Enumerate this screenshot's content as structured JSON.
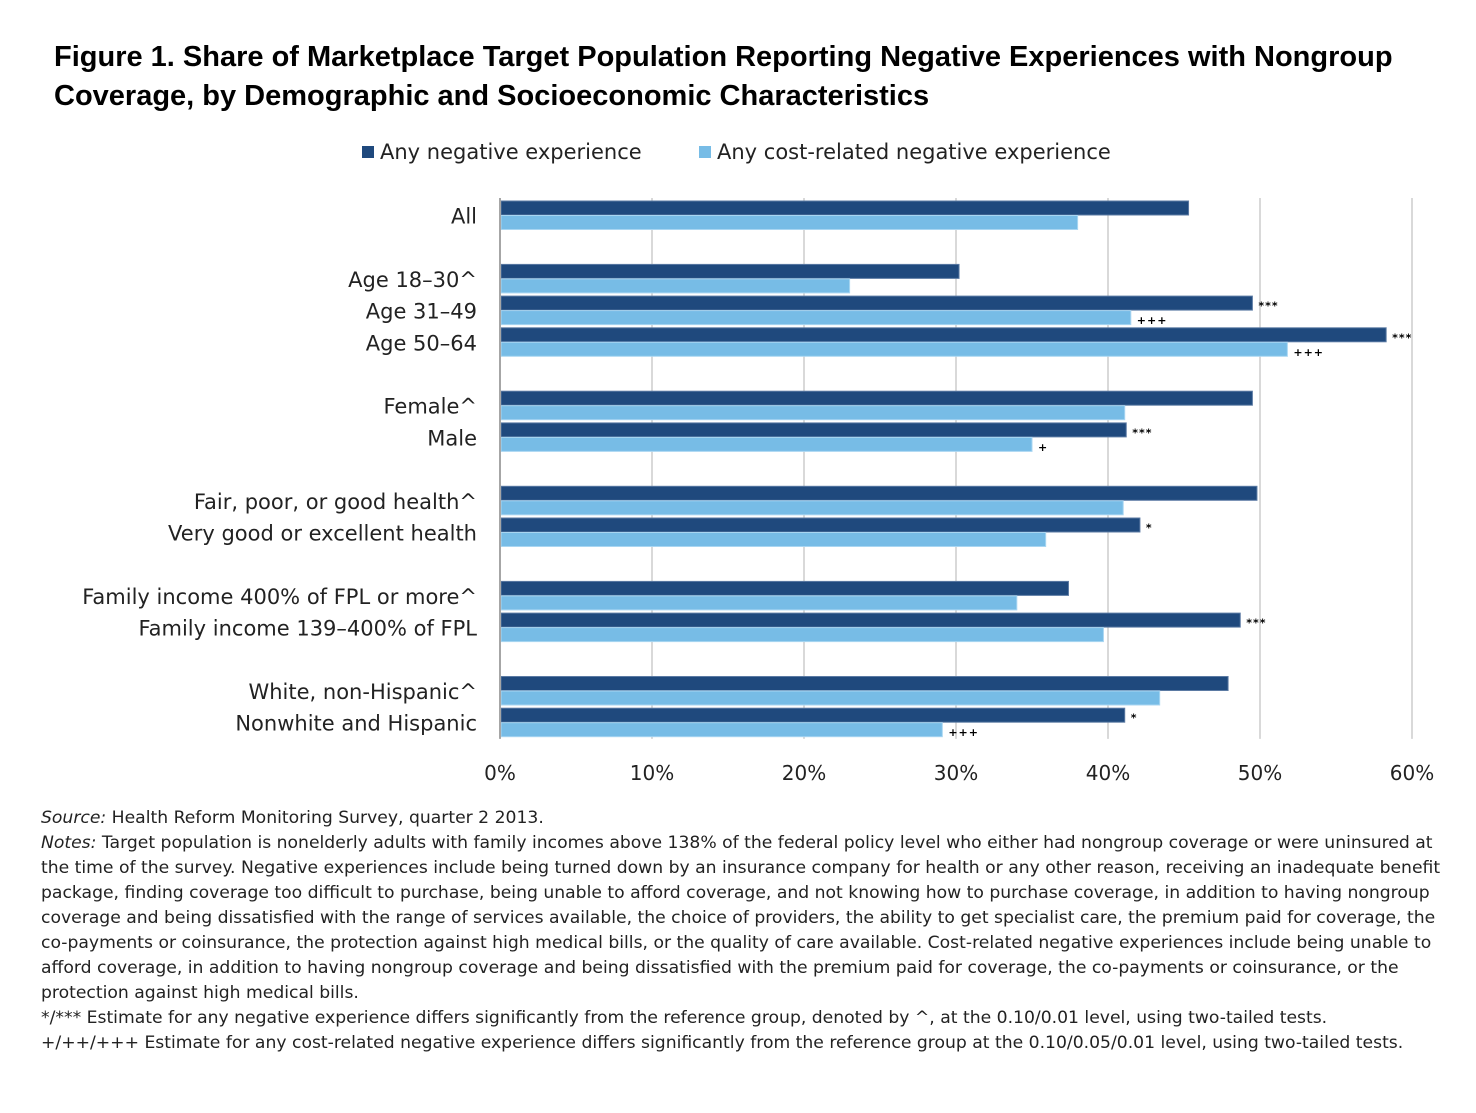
{
  "title": "Figure 1. Share of Marketplace Target Population Reporting Negative Experiences with Nongroup Coverage, by Demographic and Socioeconomic Characteristics",
  "colors": {
    "dark": "#1f497d",
    "light": "#77bce6",
    "grid": "#d9d9d9",
    "axis": "#a6a6a6"
  },
  "chart_data": {
    "type": "bar",
    "orientation": "horizontal",
    "title": "Figure 1. Share of Marketplace Target Population Reporting Negative Experiences with Nongroup Coverage, by Demographic and Socioeconomic Characteristics",
    "xlabel": "",
    "ylabel": "",
    "xlim": [
      0,
      60
    ],
    "xticks": [
      0,
      10,
      20,
      30,
      40,
      50,
      60
    ],
    "xtick_labels": [
      "0%",
      "10%",
      "20%",
      "30%",
      "40%",
      "50%",
      "60%"
    ],
    "grid": "vertical",
    "legend_position": "top-center",
    "categories": [
      "All",
      "",
      "Age 18–30^",
      "Age 31–49",
      "Age 50–64",
      "",
      "Female^",
      "Male",
      "",
      "Fair, poor, or good health^",
      "Very good or excellent health",
      "",
      "Family income 400% of FPL or more^",
      "Family income 139–400% of FPL",
      "",
      "White, non-Hispanic^",
      "Nonwhite  and Hispanic"
    ],
    "series": [
      {
        "name": "Any negative experience",
        "color": "#1f497d",
        "values": [
          45.3,
          null,
          30.2,
          49.5,
          58.3,
          null,
          49.5,
          41.2,
          null,
          49.8,
          42.1,
          null,
          37.4,
          48.7,
          null,
          47.9,
          41.1
        ],
        "significance": [
          "",
          "",
          "",
          "***",
          "***",
          "",
          "",
          "***",
          "",
          "",
          "*",
          "",
          "",
          "***",
          "",
          "",
          "*"
        ]
      },
      {
        "name": "Any cost-related negative experience",
        "color": "#77bce6",
        "values": [
          38.0,
          null,
          23.0,
          41.5,
          51.8,
          null,
          41.1,
          35.0,
          null,
          41.0,
          35.9,
          null,
          34.0,
          39.7,
          null,
          43.4,
          29.1
        ],
        "significance": [
          "",
          "",
          "",
          "+++",
          "+++",
          "",
          "",
          "+",
          "",
          "",
          "",
          "",
          "",
          "",
          "",
          "",
          "+++"
        ]
      }
    ]
  },
  "notes": {
    "source_label": "Source:",
    "source_text": " Health Reform Monitoring Survey, quarter 2 2013.",
    "notes_label": "Notes:",
    "notes_text": " Target population is nonelderly adults with family incomes above 138% of the federal policy level who either had nongroup coverage or were uninsured at the time of the survey. Negative experiences include being turned down by an insurance company for health or any other reason, receiving an inadequate benefit package, finding coverage too difficult to purchase, being unable to afford coverage, and not knowing how to purchase coverage, in addition to having nongroup coverage and being dissatisfied with the range of services available, the choice of providers, the ability to get specialist care, the premium paid for coverage, the co-payments or coinsurance, the protection against high medical bills, or the quality of care available. Cost-related negative experiences include being unable to afford coverage, in addition to having nongroup coverage and being dissatisfied with the premium paid for coverage, the co-payments or coinsurance, or the protection against high medical bills.",
    "sig1": "*/*** Estimate for any negative experience differs significantly from the reference group, denoted by ^, at the 0.10/0.01 level, using two-tailed tests.",
    "sig2": "+/++/+++ Estimate for any cost-related negative experience differs significantly from the reference group at the 0.10/0.05/0.01 level, using two-tailed tests."
  }
}
